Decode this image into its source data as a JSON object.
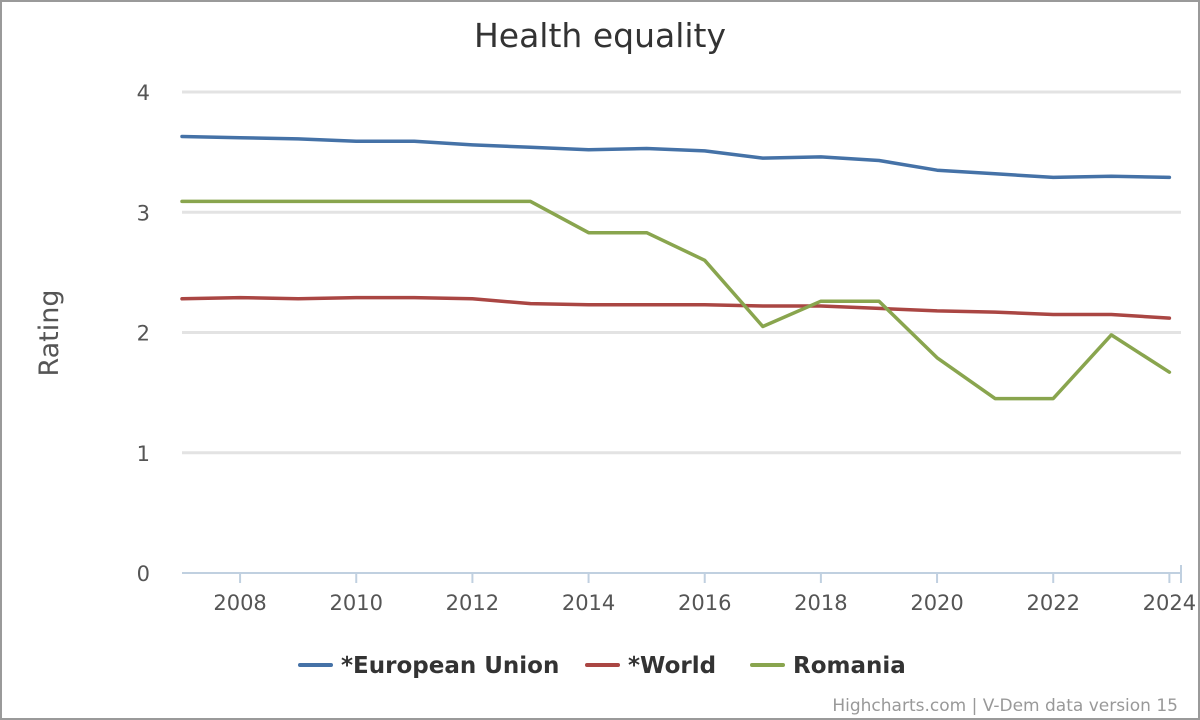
{
  "chart_data": {
    "type": "line",
    "title": "Health equality",
    "xlabel": "",
    "ylabel": "Rating",
    "xlim": [
      2007,
      2024.2
    ],
    "ylim": [
      0,
      4
    ],
    "x_ticks": [
      2008,
      2010,
      2012,
      2014,
      2016,
      2018,
      2020,
      2022,
      2024
    ],
    "y_ticks": [
      0,
      1,
      2,
      3,
      4
    ],
    "grid": true,
    "legend_position": "bottom-center",
    "x": [
      2007,
      2008,
      2009,
      2010,
      2011,
      2012,
      2013,
      2014,
      2015,
      2016,
      2017,
      2018,
      2019,
      2020,
      2021,
      2022,
      2023,
      2024
    ],
    "series": [
      {
        "name": "*European Union",
        "color": "#4572a7",
        "values": [
          3.63,
          3.62,
          3.61,
          3.59,
          3.59,
          3.56,
          3.54,
          3.52,
          3.53,
          3.51,
          3.45,
          3.46,
          3.43,
          3.35,
          3.32,
          3.29,
          3.3,
          3.29
        ]
      },
      {
        "name": "*World",
        "color": "#aa4643",
        "values": [
          2.28,
          2.29,
          2.28,
          2.29,
          2.29,
          2.28,
          2.24,
          2.23,
          2.23,
          2.23,
          2.22,
          2.22,
          2.2,
          2.18,
          2.17,
          2.15,
          2.15,
          2.12
        ]
      },
      {
        "name": "Romania",
        "color": "#89a54e",
        "values": [
          3.09,
          3.09,
          3.09,
          3.09,
          3.09,
          3.09,
          3.09,
          2.83,
          2.83,
          2.6,
          2.05,
          2.26,
          2.26,
          1.79,
          1.45,
          1.45,
          1.98,
          1.67
        ]
      }
    ]
  },
  "credits": "Highcharts.com | V-Dem data version 15"
}
